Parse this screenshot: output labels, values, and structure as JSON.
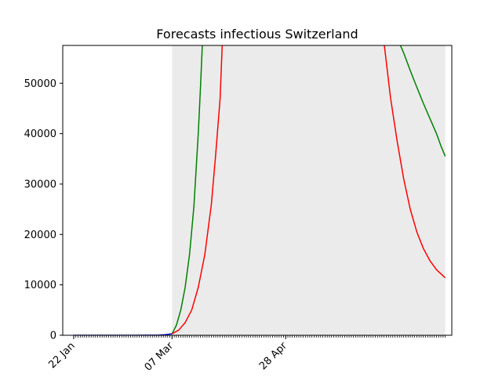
{
  "chart_data": {
    "type": "line",
    "title": "Forecasts infectious Switzerland",
    "xlabel": "",
    "ylabel": "",
    "x_axis": {
      "type": "date",
      "start": "2020-01-17",
      "end": "2020-07-13",
      "ticks": [
        {
          "date": "2020-01-22",
          "label": "22 Jan"
        },
        {
          "date": "2020-03-07",
          "label": "07 Mar"
        },
        {
          "date": "2020-04-28",
          "label": "28 Apr"
        }
      ],
      "minor_tick_start": "2020-01-22",
      "minor_tick_end": "2020-07-10"
    },
    "ylim": [
      0,
      57500
    ],
    "yticks": [
      0,
      10000,
      20000,
      30000,
      40000,
      50000
    ],
    "grid": false,
    "legend": "none",
    "band": {
      "color": "#ebebeb",
      "x": [
        "2020-03-07",
        "2020-07-10"
      ],
      "lower": [
        0,
        0
      ],
      "upper": [
        57500,
        57500
      ]
    },
    "series": [
      {
        "color": "#0000cc",
        "x": [
          "2020-01-22",
          "2020-02-05",
          "2020-02-19",
          "2020-02-26",
          "2020-03-01",
          "2020-03-04",
          "2020-03-07"
        ],
        "values": [
          0,
          0,
          5,
          15,
          40,
          120,
          300
        ]
      },
      {
        "color": "#008000",
        "x": [
          "2020-03-07",
          "2020-03-09",
          "2020-03-11",
          "2020-03-13",
          "2020-03-15",
          "2020-03-17",
          "2020-03-19",
          "2020-03-20",
          "2020-03-21",
          "2020-06-18",
          "2020-06-21",
          "2020-06-24",
          "2020-06-27",
          "2020-06-30",
          "2020-07-03",
          "2020-07-06",
          "2020-07-08",
          "2020-07-10"
        ],
        "values": [
          300,
          2000,
          5000,
          9500,
          16000,
          25500,
          40000,
          49000,
          59000,
          59000,
          56000,
          52500,
          49200,
          46000,
          43000,
          40000,
          37600,
          35500
        ]
      },
      {
        "color": "#ff0000",
        "x": [
          "2020-03-07",
          "2020-03-10",
          "2020-03-13",
          "2020-03-16",
          "2020-03-19",
          "2020-03-22",
          "2020-03-25",
          "2020-03-27",
          "2020-03-29",
          "2020-03-30",
          "2020-06-12",
          "2020-06-15",
          "2020-06-18",
          "2020-06-21",
          "2020-06-24",
          "2020-06-27",
          "2020-06-30",
          "2020-07-03",
          "2020-07-06",
          "2020-07-10"
        ],
        "values": [
          300,
          1000,
          2500,
          5000,
          9500,
          16000,
          26000,
          36000,
          47000,
          58000,
          58000,
          47000,
          38500,
          31000,
          25000,
          20500,
          17200,
          14800,
          13000,
          11400
        ]
      }
    ]
  }
}
